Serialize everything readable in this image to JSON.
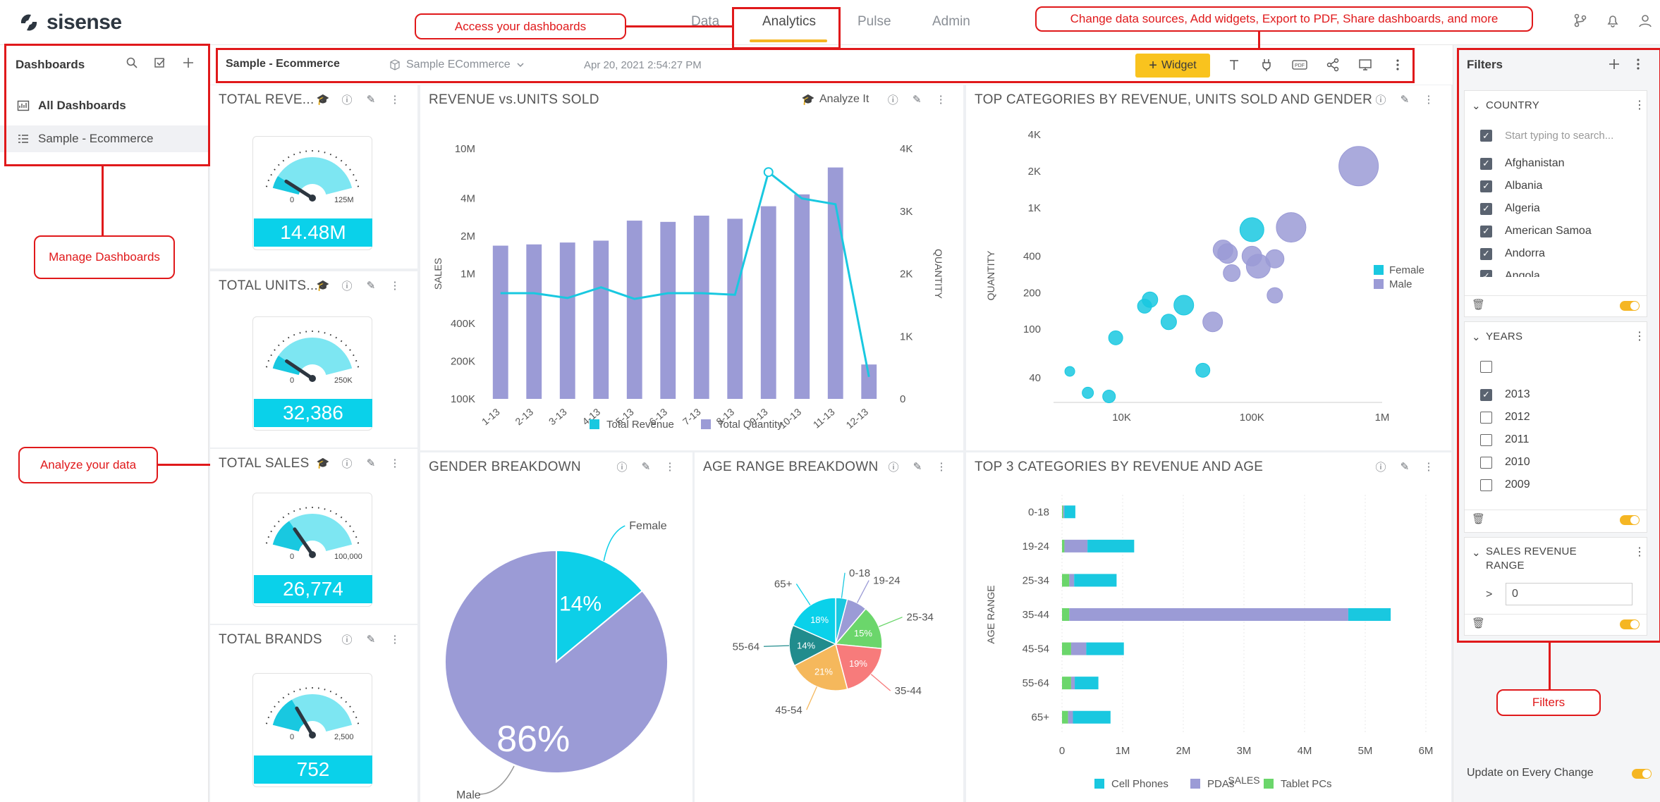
{
  "app": {
    "logo_text": "sisense"
  },
  "nav": {
    "tabs": [
      {
        "label": "Data"
      },
      {
        "label": "Analytics"
      },
      {
        "label": "Pulse"
      },
      {
        "label": "Admin"
      }
    ],
    "active": "Analytics"
  },
  "sidebar": {
    "header": "Dashboards",
    "items": [
      {
        "label": "All Dashboards"
      },
      {
        "label": "Sample - Ecommerce"
      }
    ]
  },
  "toolbar": {
    "title": "Sample - Ecommerce",
    "source": "Sample ECommerce",
    "date": "Apr 20, 2021 2:54:27 PM",
    "widget_label": "Widget",
    "widget_plus": "+",
    "pdf_label": "PDF"
  },
  "widgets": {
    "total_revenue": {
      "title": "TOTAL REVE...",
      "value": "14.48M",
      "min": "0",
      "max": "125M",
      "level": 0.12
    },
    "total_units": {
      "title": "TOTAL UNITS...",
      "value": "32,386",
      "min": "0",
      "max": "250K",
      "level": 0.13
    },
    "total_sales": {
      "title": "TOTAL SALES",
      "value": "26,774",
      "min": "0",
      "max": "100,000",
      "level": 0.27
    },
    "total_brands": {
      "title": "TOTAL BRANDS",
      "value": "752",
      "min": "0",
      "max": "2,500",
      "level": 0.3
    },
    "revenue_units": {
      "title": "REVENUE vs.UNITS SOLD",
      "analyze_label": "Analyze It"
    },
    "top_categories": {
      "title": "TOP CATEGORIES BY REVENUE, UNITS SOLD AND GENDER"
    },
    "gender": {
      "title": "GENDER BREAKDOWN"
    },
    "age": {
      "title": "AGE RANGE BREAKDOWN"
    },
    "top3": {
      "title": "TOP 3 CATEGORIES BY REVENUE AND AGE"
    }
  },
  "chart_data": [
    {
      "type": "bar",
      "title": "REVENUE vs.UNITS SOLD",
      "categories": [
        "1-13",
        "2-13",
        "3-13",
        "4-13",
        "5-13",
        "6-13",
        "7-13",
        "8-13",
        "9-13",
        "10-13",
        "11-13",
        "12-13"
      ],
      "ylabel": "SALES",
      "y2label": "QUANTITY",
      "y_ticks": [
        "10M",
        "4M",
        "2M",
        "1M",
        "400K",
        "200K",
        "100K"
      ],
      "y2_ticks": [
        "4K",
        "3K",
        "2K",
        "1K",
        "0"
      ],
      "y2lim": [
        0,
        4000
      ],
      "series": [
        {
          "name": "Total Revenue",
          "type": "line",
          "color": "#19c8e0",
          "values": [
            700000,
            700000,
            640000,
            780000,
            630000,
            700000,
            700000,
            680000,
            6500000,
            4000000,
            3600000,
            150000
          ]
        },
        {
          "name": "Total Quantity",
          "type": "bar",
          "color": "#9b9bd6",
          "values": [
            2450,
            2470,
            2500,
            2530,
            2850,
            2830,
            2930,
            2880,
            3080,
            3270,
            3700,
            550
          ]
        }
      ],
      "legend_position": "bottom"
    },
    {
      "type": "scatter",
      "title": "TOP CATEGORIES BY REVENUE, UNITS SOLD AND GENDER",
      "ylabel": "QUANTITY",
      "x_ticks": [
        "10K",
        "100K",
        "1M"
      ],
      "y_ticks": [
        "4K",
        "2K",
        "1K",
        "400",
        "200",
        "100",
        "40"
      ],
      "xlim": [
        3000,
        1000000
      ],
      "ylim": [
        25,
        4000
      ],
      "legend_position": "right",
      "series": [
        {
          "name": "Female",
          "color": "#19c8e0",
          "points": [
            {
              "x": 4000,
              "y": 45,
              "r": 7
            },
            {
              "x": 5500,
              "y": 30,
              "r": 8
            },
            {
              "x": 8000,
              "y": 28,
              "r": 9
            },
            {
              "x": 9000,
              "y": 85,
              "r": 10
            },
            {
              "x": 15000,
              "y": 155,
              "r": 10
            },
            {
              "x": 16500,
              "y": 175,
              "r": 11
            },
            {
              "x": 23000,
              "y": 115,
              "r": 11
            },
            {
              "x": 30000,
              "y": 158,
              "r": 14
            },
            {
              "x": 42000,
              "y": 46,
              "r": 10
            },
            {
              "x": 100000,
              "y": 660,
              "r": 17
            }
          ]
        },
        {
          "name": "Male",
          "color": "#9b9bd6",
          "points": [
            {
              "x": 50000,
              "y": 115,
              "r": 14
            },
            {
              "x": 60000,
              "y": 450,
              "r": 14
            },
            {
              "x": 65000,
              "y": 420,
              "r": 14
            },
            {
              "x": 70000,
              "y": 290,
              "r": 12
            },
            {
              "x": 100000,
              "y": 400,
              "r": 14
            },
            {
              "x": 112000,
              "y": 330,
              "r": 17
            },
            {
              "x": 150000,
              "y": 380,
              "r": 13
            },
            {
              "x": 150000,
              "y": 190,
              "r": 11
            },
            {
              "x": 200000,
              "y": 690,
              "r": 21
            },
            {
              "x": 660000,
              "y": 2200,
              "r": 28
            }
          ]
        }
      ]
    },
    {
      "type": "pie",
      "title": "GENDER BREAKDOWN",
      "series": [
        {
          "name": "Female",
          "value": 14,
          "label": "14%",
          "color": "#0dcfe8"
        },
        {
          "name": "Male",
          "value": 86,
          "label": "86%",
          "color": "#9b9bd6"
        }
      ]
    },
    {
      "type": "pie",
      "title": "AGE RANGE BREAKDOWN",
      "series": [
        {
          "name": "0-18",
          "value": 4,
          "label": "",
          "color": "#19c8e0"
        },
        {
          "name": "19-24",
          "value": 7,
          "label": "",
          "color": "#9b9bd6"
        },
        {
          "name": "25-34",
          "value": 15,
          "label": "15%",
          "color": "#6bd66b"
        },
        {
          "name": "35-44",
          "value": 19,
          "label": "19%",
          "color": "#f77b7b"
        },
        {
          "name": "45-54",
          "value": 21,
          "label": "21%",
          "color": "#f5b85c"
        },
        {
          "name": "55-64",
          "value": 14,
          "label": "14%",
          "color": "#218c8d"
        },
        {
          "name": "65+",
          "value": 18,
          "label": "18%",
          "color": "#0ad1ea"
        }
      ]
    },
    {
      "type": "bar",
      "orientation": "horizontal",
      "stacked": true,
      "title": "TOP 3 CATEGORIES BY REVENUE AND AGE",
      "xlabel": "SALES",
      "ylabel": "AGE RANGE",
      "categories": [
        "0-18",
        "19-24",
        "25-34",
        "35-44",
        "45-54",
        "55-64",
        "65+"
      ],
      "x_ticks": [
        "0",
        "1M",
        "2M",
        "3M",
        "4M",
        "5M",
        "6M"
      ],
      "xlim": [
        0,
        6000000
      ],
      "legend_position": "bottom",
      "series": [
        {
          "name": "Tablet PCs",
          "color": "#6bd66b",
          "values": [
            20000,
            40000,
            120000,
            120000,
            150000,
            150000,
            100000
          ]
        },
        {
          "name": "PDAs",
          "color": "#9b9bd6",
          "values": [
            20000,
            380000,
            80000,
            4600000,
            250000,
            60000,
            80000
          ]
        },
        {
          "name": "Cell Phones",
          "color": "#19c8e0",
          "values": [
            180000,
            770000,
            700000,
            700000,
            620000,
            390000,
            620000
          ]
        }
      ],
      "legend_order": [
        "Cell Phones",
        "PDAs",
        "Tablet PCs"
      ]
    }
  ],
  "filters": {
    "title": "Filters",
    "country": {
      "label": "COUNTRY",
      "search_placeholder": "Start typing to search...",
      "items": [
        "Afghanistan",
        "Albania",
        "Algeria",
        "American Samoa",
        "Andorra",
        "Angola"
      ]
    },
    "years": {
      "label": "YEARS",
      "items": [
        {
          "label": "2013",
          "checked": true
        },
        {
          "label": "2012",
          "checked": false
        },
        {
          "label": "2011",
          "checked": false
        },
        {
          "label": "2010",
          "checked": false
        },
        {
          "label": "2009",
          "checked": false
        }
      ]
    },
    "revenue_range": {
      "label": "SALES REVENUE RANGE",
      "operator": ">",
      "value": "0"
    },
    "update_label": "Update on Every Change"
  },
  "annotations": {
    "access": "Access your dashboards",
    "change": "Change data sources, Add widgets, Export to PDF, Share dashboards, and more",
    "manage": "Manage Dashboards",
    "analyze": "Analyze your data",
    "filters": "Filters"
  }
}
